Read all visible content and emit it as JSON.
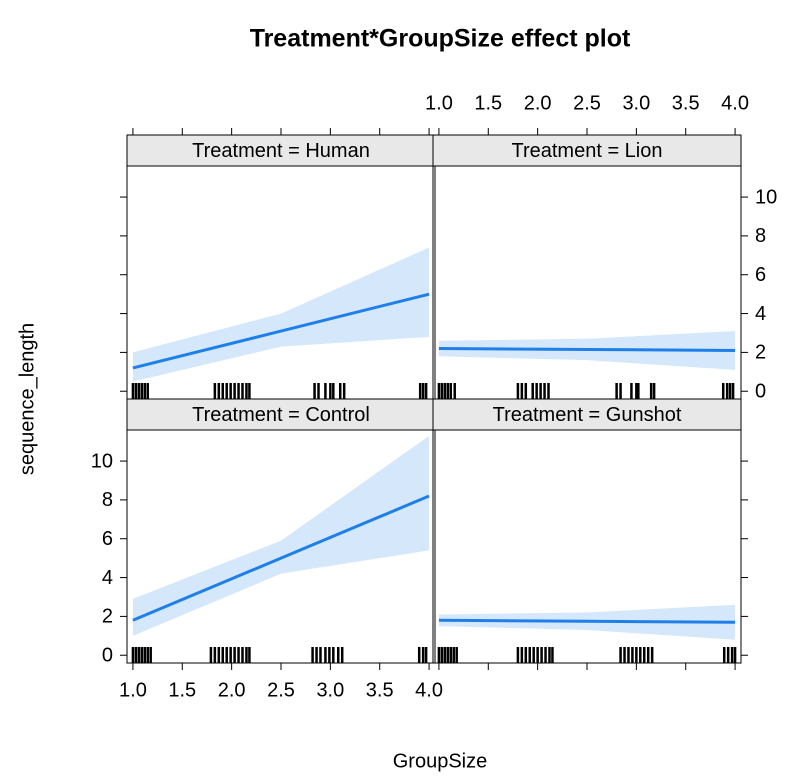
{
  "chart_data": {
    "type": "effect-panels",
    "title": "Treatment*GroupSize effect plot",
    "x_label": "GroupSize",
    "y_label": "sequence_length",
    "xlim": [
      0.94,
      4.06
    ],
    "ylim": [
      -0.4,
      11.6
    ],
    "xticks": [
      {
        "value": 1.0,
        "label": "1.0"
      },
      {
        "value": 1.5,
        "label": "1.5"
      },
      {
        "value": 2.0,
        "label": "2.0"
      },
      {
        "value": 2.5,
        "label": "2.5"
      },
      {
        "value": 3.0,
        "label": "3.0"
      },
      {
        "value": 3.5,
        "label": "3.5"
      },
      {
        "value": 4.0,
        "label": "4.0"
      }
    ],
    "yticks": [
      0,
      2,
      4,
      6,
      8,
      10
    ],
    "line_color": "#1f7fe8",
    "band_color": "#d5e7fb",
    "strip_color": "#e8e8e8",
    "panels": [
      {
        "strip": "Treatment = Human",
        "x": [
          1,
          2.5,
          4
        ],
        "fit": [
          1.2,
          3.1,
          5.0
        ],
        "lower": [
          0.5,
          2.3,
          2.8
        ],
        "upper": [
          2.0,
          4.0,
          7.4
        ],
        "rug": [
          1.0,
          1.03,
          1.06,
          1.09,
          1.12,
          1.15,
          1.83,
          1.87,
          1.91,
          1.95,
          1.99,
          2.03,
          2.07,
          2.11,
          2.15,
          2.18,
          2.84,
          2.88,
          2.95,
          3.0,
          3.03,
          3.1,
          3.14,
          3.91,
          3.94,
          3.97
        ]
      },
      {
        "strip": "Treatment = Lion",
        "x": [
          1,
          2.5,
          4
        ],
        "fit": [
          2.2,
          2.15,
          2.1
        ],
        "lower": [
          1.8,
          1.6,
          1.1
        ],
        "upper": [
          2.6,
          2.7,
          3.1
        ],
        "rug": [
          1.0,
          1.03,
          1.06,
          1.09,
          1.12,
          1.16,
          1.8,
          1.84,
          1.88,
          1.95,
          1.99,
          2.03,
          2.07,
          2.11,
          2.8,
          2.84,
          2.95,
          3.0,
          3.02,
          3.15,
          3.18,
          3.88,
          3.92,
          3.95,
          3.98
        ]
      },
      {
        "strip": "Treatment = Control",
        "x": [
          1,
          2.5,
          4
        ],
        "fit": [
          1.8,
          5.0,
          8.2
        ],
        "lower": [
          1.0,
          4.2,
          5.4
        ],
        "upper": [
          2.9,
          5.9,
          11.3
        ],
        "rug": [
          1.0,
          1.03,
          1.06,
          1.09,
          1.12,
          1.15,
          1.18,
          1.79,
          1.83,
          1.87,
          1.91,
          1.95,
          1.99,
          2.03,
          2.07,
          2.11,
          2.15,
          2.18,
          2.82,
          2.86,
          2.9,
          2.95,
          2.99,
          3.03,
          3.08,
          3.12,
          3.9,
          3.94,
          3.97
        ]
      },
      {
        "strip": "Treatment = Gunshot",
        "x": [
          1,
          2.5,
          4
        ],
        "fit": [
          1.8,
          1.75,
          1.7
        ],
        "lower": [
          1.5,
          1.3,
          0.8
        ],
        "upper": [
          2.1,
          2.2,
          2.6
        ],
        "rug": [
          1.0,
          1.03,
          1.06,
          1.09,
          1.12,
          1.15,
          1.18,
          1.8,
          1.84,
          1.88,
          1.92,
          1.96,
          2.0,
          2.04,
          2.08,
          2.12,
          2.15,
          2.84,
          2.88,
          2.92,
          2.96,
          3.0,
          3.04,
          3.08,
          3.12,
          3.16,
          3.89,
          3.93,
          3.97,
          4.0
        ]
      }
    ]
  }
}
